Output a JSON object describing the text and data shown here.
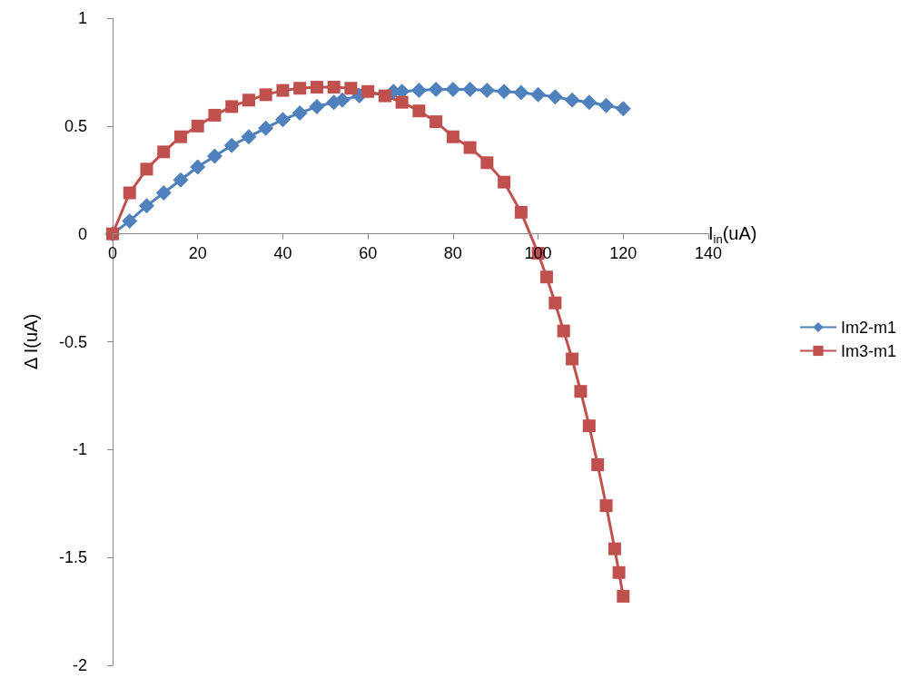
{
  "chart_data": {
    "type": "line",
    "xlabel": "I$_{in}$(uA)",
    "ylabel": "Δ I(uA)",
    "xlim": [
      0,
      140
    ],
    "xticks": [
      0,
      20,
      40,
      60,
      80,
      100,
      120,
      140
    ],
    "ylim": [
      -2,
      1
    ],
    "yticks": [
      -2,
      -1.5,
      -1,
      -0.5,
      0,
      0.5,
      1
    ],
    "grid": false,
    "legend": "right",
    "line_style": "solid",
    "series": [
      {
        "name": "Im2-m1",
        "color": "#4f81bd",
        "marker": "diamond",
        "x": [
          0,
          4,
          8,
          12,
          16,
          20,
          24,
          28,
          32,
          36,
          40,
          44,
          48,
          52,
          54,
          58,
          66,
          68,
          72,
          76,
          80,
          84,
          88,
          92,
          96,
          100,
          104,
          108,
          112,
          116,
          120
        ],
        "values": [
          0,
          0.06,
          0.13,
          0.19,
          0.25,
          0.31,
          0.36,
          0.41,
          0.45,
          0.49,
          0.53,
          0.56,
          0.59,
          0.61,
          0.62,
          0.64,
          0.66,
          0.66,
          0.665,
          0.67,
          0.67,
          0.67,
          0.665,
          0.66,
          0.655,
          0.645,
          0.635,
          0.62,
          0.61,
          0.595,
          0.58
        ]
      },
      {
        "name": "Im3-m1",
        "color": "#c0504d",
        "marker": "square",
        "x": [
          0,
          4,
          8,
          12,
          16,
          20,
          24,
          28,
          32,
          36,
          40,
          44,
          48,
          52,
          56,
          60,
          64,
          68,
          72,
          76,
          80,
          84,
          88,
          92,
          96,
          100,
          102,
          104,
          106,
          108,
          110,
          112,
          114,
          116,
          118,
          119,
          120
        ],
        "values": [
          0,
          0.19,
          0.3,
          0.38,
          0.45,
          0.5,
          0.55,
          0.59,
          0.62,
          0.645,
          0.665,
          0.675,
          0.68,
          0.68,
          0.675,
          0.66,
          0.64,
          0.61,
          0.57,
          0.52,
          0.45,
          0.4,
          0.33,
          0.24,
          0.1,
          -0.09,
          -0.2,
          -0.32,
          -0.45,
          -0.58,
          -0.73,
          -0.89,
          -1.07,
          -1.26,
          -1.46,
          -1.57,
          -1.68
        ]
      }
    ]
  }
}
